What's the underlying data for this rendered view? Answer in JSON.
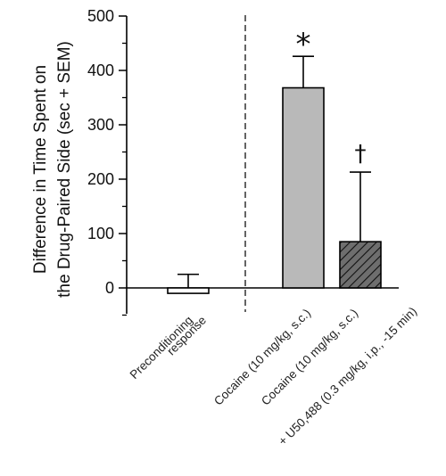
{
  "chart_data": {
    "type": "bar",
    "ylabel_lines": [
      "Difference in Time Spent on",
      "the Drug-Paired Side (sec + SEM)"
    ],
    "ylim": [
      -50,
      500
    ],
    "yticks": [
      0,
      100,
      200,
      300,
      400,
      500
    ],
    "grid": false,
    "categories": [
      {
        "lines": [
          "Preconditioning",
          "response"
        ]
      },
      {
        "lines": [
          "Cocaine (10 mg/kg, s.c.)"
        ]
      },
      {
        "lines": [
          "Cocaine (10 mg/kg, s.c.)",
          "+ U50,488 (0.3 mg/kg, i.p., -15 min)"
        ]
      }
    ],
    "values": [
      -10,
      368,
      85
    ],
    "sem": [
      35,
      58,
      128
    ],
    "significance": [
      "",
      "*",
      "†"
    ],
    "bar_styles": [
      "open",
      "gray",
      "hatched"
    ],
    "colors": {
      "gray_fill": "#b9b9b9",
      "hatch_fill": "#6e6e6e",
      "axis": "#000000"
    }
  }
}
